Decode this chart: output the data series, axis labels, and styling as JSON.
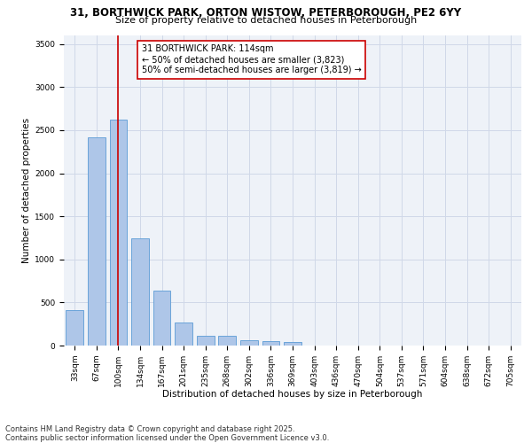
{
  "title_line1": "31, BORTHWICK PARK, ORTON WISTOW, PETERBOROUGH, PE2 6YY",
  "title_line2": "Size of property relative to detached houses in Peterborough",
  "xlabel": "Distribution of detached houses by size in Peterborough",
  "ylabel": "Number of detached properties",
  "categories": [
    "33sqm",
    "67sqm",
    "100sqm",
    "134sqm",
    "167sqm",
    "201sqm",
    "235sqm",
    "268sqm",
    "302sqm",
    "336sqm",
    "369sqm",
    "403sqm",
    "436sqm",
    "470sqm",
    "504sqm",
    "537sqm",
    "571sqm",
    "604sqm",
    "638sqm",
    "672sqm",
    "705sqm"
  ],
  "values": [
    410,
    2420,
    2620,
    1240,
    640,
    270,
    110,
    110,
    60,
    50,
    40,
    0,
    0,
    0,
    0,
    0,
    0,
    0,
    0,
    0,
    0
  ],
  "bar_color": "#aec6e8",
  "bar_edge_color": "#5b9bd5",
  "vline_x": 2,
  "vline_color": "#cc0000",
  "annotation_text": "31 BORTHWICK PARK: 114sqm\n← 50% of detached houses are smaller (3,823)\n50% of semi-detached houses are larger (3,819) →",
  "annotation_box_color": "#ffffff",
  "annotation_box_edge_color": "#cc0000",
  "ylim": [
    0,
    3600
  ],
  "yticks": [
    0,
    500,
    1000,
    1500,
    2000,
    2500,
    3000,
    3500
  ],
  "grid_color": "#d0d8e8",
  "bg_color": "#eef2f8",
  "footer_line1": "Contains HM Land Registry data © Crown copyright and database right 2025.",
  "footer_line2": "Contains public sector information licensed under the Open Government Licence v3.0.",
  "title_fontsize": 8.5,
  "subtitle_fontsize": 8.0,
  "axis_label_fontsize": 7.5,
  "tick_fontsize": 6.5,
  "annotation_fontsize": 7.0,
  "footer_fontsize": 6.0
}
